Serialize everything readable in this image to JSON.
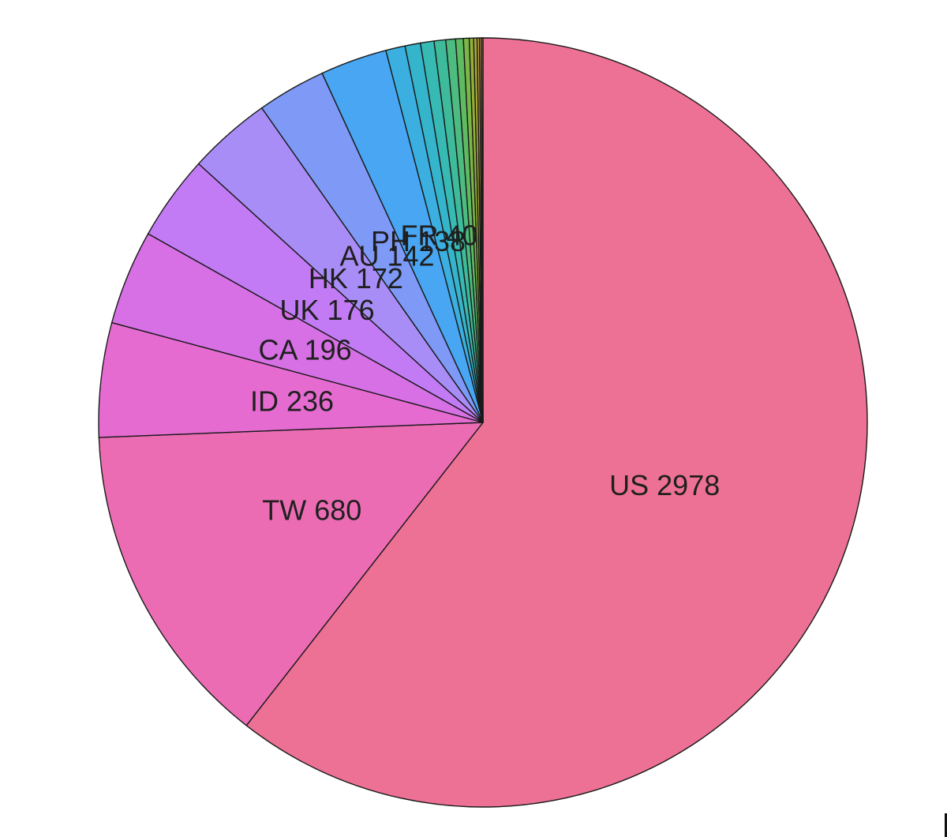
{
  "chart_data": {
    "type": "pie",
    "title": "",
    "start_angle": "12 o'clock",
    "direction": "clockwise",
    "legend": "none",
    "slices": [
      {
        "label": "US",
        "value": 2978,
        "color": "#EC7194"
      },
      {
        "label": "TW",
        "value": 680,
        "color": "#EC6CB4"
      },
      {
        "label": "ID",
        "value": 236,
        "color": "#E56BD1"
      },
      {
        "label": "CA",
        "value": 196,
        "color": "#D670E4"
      },
      {
        "label": "UK",
        "value": 176,
        "color": "#C27BF5"
      },
      {
        "label": "HK",
        "value": 172,
        "color": "#A98DF6"
      },
      {
        "label": "AU",
        "value": 142,
        "color": "#7E99F6"
      },
      {
        "label": "PH",
        "value": 138,
        "color": "#48A6F2"
      },
      {
        "label": "FR",
        "value": 40,
        "color": "#3BB0E0"
      },
      {
        "label": "",
        "value": 32,
        "color": "#35B5CB"
      },
      {
        "label": "",
        "value": 28,
        "color": "#37B9B4"
      },
      {
        "label": "",
        "value": 24,
        "color": "#3DBB9B"
      },
      {
        "label": "",
        "value": 20,
        "color": "#4CBC80"
      },
      {
        "label": "",
        "value": 16,
        "color": "#5EBB62"
      },
      {
        "label": "",
        "value": 12,
        "color": "#79B746"
      },
      {
        "label": "",
        "value": 9,
        "color": "#93B035"
      },
      {
        "label": "",
        "value": 7,
        "color": "#A9A837"
      },
      {
        "label": "",
        "value": 5,
        "color": "#BBA041"
      },
      {
        "label": "",
        "value": 4,
        "color": "#C6964E"
      },
      {
        "label": "",
        "value": 3,
        "color": "#CF8A5E"
      }
    ]
  }
}
